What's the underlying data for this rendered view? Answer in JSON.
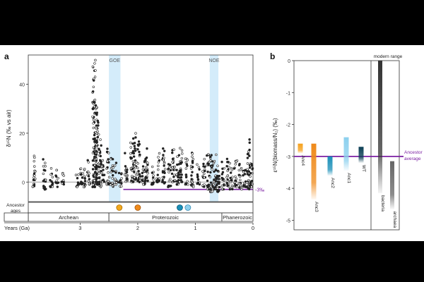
{
  "figure": {
    "panel_a_label": "a",
    "panel_b_label": "b"
  },
  "chart_data": [
    {
      "id": "panel-a",
      "type": "scatter",
      "title": "",
      "ylabel": "δ¹⁵N (‰ vs air)",
      "xlabel": "Years (Ga)",
      "xlim": [
        3.9,
        0
      ],
      "ylim": [
        -8,
        52
      ],
      "y_ticks": [
        0,
        20,
        40
      ],
      "x_ticks": [
        3,
        2,
        1,
        0
      ],
      "reference_lines": [
        {
          "y": 0,
          "color": "#9e9e9e"
        },
        {
          "y": -3,
          "x_from": 2.25,
          "x_to": 0,
          "color": "#7b1fa2",
          "label": "-3‰"
        }
      ],
      "bands": [
        {
          "label": "GOE",
          "x_from": 2.5,
          "x_to": 2.3,
          "color": "#d4ecfa"
        },
        {
          "label": "NOE",
          "x_from": 0.75,
          "x_to": 0.6,
          "color": "#d4ecfa"
        }
      ],
      "point_color": "#222222",
      "clusters": [
        {
          "x": 3.8,
          "ymin": -2,
          "ymax": 11
        },
        {
          "x": 3.62,
          "ymin": -3,
          "ymax": 10
        },
        {
          "x": 3.5,
          "ymin": -2,
          "ymax": 7
        },
        {
          "x": 3.4,
          "ymin": -2,
          "ymax": 5
        },
        {
          "x": 3.3,
          "ymin": -1,
          "ymax": 4
        },
        {
          "x": 3.05,
          "ymin": -2,
          "ymax": 4
        },
        {
          "x": 2.98,
          "ymin": -1,
          "ymax": 6
        },
        {
          "x": 2.93,
          "ymin": -2,
          "ymax": 7
        },
        {
          "x": 2.85,
          "ymin": -1,
          "ymax": 9
        },
        {
          "x": 2.76,
          "ymin": -2,
          "ymax": 50
        },
        {
          "x": 2.73,
          "ymin": 0,
          "ymax": 32
        },
        {
          "x": 2.7,
          "ymin": -1,
          "ymax": 26
        },
        {
          "x": 2.65,
          "ymin": -2,
          "ymax": 18
        },
        {
          "x": 2.6,
          "ymin": 0,
          "ymax": 10
        },
        {
          "x": 2.52,
          "ymin": -1,
          "ymax": 14
        },
        {
          "x": 2.45,
          "ymin": -2,
          "ymax": 10
        },
        {
          "x": 2.38,
          "ymin": -1,
          "ymax": 9
        },
        {
          "x": 2.3,
          "ymin": -2,
          "ymax": 6
        },
        {
          "x": 2.2,
          "ymin": 0,
          "ymax": 12
        },
        {
          "x": 2.1,
          "ymin": 0,
          "ymax": 18
        },
        {
          "x": 2.05,
          "ymin": 1,
          "ymax": 20
        },
        {
          "x": 1.98,
          "ymin": 0,
          "ymax": 17
        },
        {
          "x": 1.9,
          "ymin": -1,
          "ymax": 10
        },
        {
          "x": 1.85,
          "ymin": 0,
          "ymax": 14
        },
        {
          "x": 1.75,
          "ymin": -1,
          "ymax": 7
        },
        {
          "x": 1.65,
          "ymin": 0,
          "ymax": 12
        },
        {
          "x": 1.55,
          "ymin": -1,
          "ymax": 14
        },
        {
          "x": 1.45,
          "ymin": -2,
          "ymax": 8
        },
        {
          "x": 1.38,
          "ymin": 0,
          "ymax": 14
        },
        {
          "x": 1.3,
          "ymin": -1,
          "ymax": 11
        },
        {
          "x": 1.25,
          "ymin": 0,
          "ymax": 15
        },
        {
          "x": 1.15,
          "ymin": -1,
          "ymax": 10
        },
        {
          "x": 1.05,
          "ymin": -2,
          "ymax": 13
        },
        {
          "x": 0.95,
          "ymin": -1,
          "ymax": 8
        },
        {
          "x": 0.85,
          "ymin": -2,
          "ymax": 10
        },
        {
          "x": 0.78,
          "ymin": -3,
          "ymax": 12
        },
        {
          "x": 0.72,
          "ymin": -4,
          "ymax": 14
        },
        {
          "x": 0.66,
          "ymin": -3,
          "ymax": 12
        },
        {
          "x": 0.6,
          "ymin": -4,
          "ymax": 10
        },
        {
          "x": 0.52,
          "ymin": -3,
          "ymax": 9
        },
        {
          "x": 0.44,
          "ymin": -2,
          "ymax": 10
        },
        {
          "x": 0.38,
          "ymin": -3,
          "ymax": 8
        },
        {
          "x": 0.3,
          "ymin": -2,
          "ymax": 9
        },
        {
          "x": 0.22,
          "ymin": -3,
          "ymax": 8
        },
        {
          "x": 0.15,
          "ymin": -2,
          "ymax": 9
        },
        {
          "x": 0.08,
          "ymin": -3,
          "ymax": 18
        },
        {
          "x": 0.03,
          "ymin": -2,
          "ymax": 10
        }
      ],
      "ancestor_ages": {
        "label": "Ancestor ages",
        "line_from": 2.95,
        "line_to": 0.85,
        "markers": [
          {
            "x": 2.32,
            "color": "#f2a81d",
            "stroke": "#b06f00"
          },
          {
            "x": 2.0,
            "color": "#ef8a1a",
            "stroke": "#a8560a"
          },
          {
            "x": 1.27,
            "color": "#1a8fb8",
            "stroke": "#0a5a78"
          },
          {
            "x": 1.13,
            "color": "#8cd0ee",
            "stroke": "#3a8eb5"
          }
        ]
      },
      "eons": [
        {
          "label": "Archean",
          "x_from": 3.9,
          "x_to": 2.5
        },
        {
          "label": "Proterozoic",
          "x_from": 2.5,
          "x_to": 0.54
        },
        {
          "label": "Phanerozoic",
          "x_from": 0.54,
          "x_to": 0
        }
      ]
    },
    {
      "id": "panel-b",
      "type": "bar",
      "title": "",
      "ylabel": "ε¹⁵N(biomass/N₂) (‰)",
      "ylim": [
        -5.3,
        0
      ],
      "y_ticks": [
        0,
        -1,
        -2,
        -3,
        -4,
        -5
      ],
      "reference_line": {
        "y": -3,
        "color": "#7b1fa2",
        "label": "Ancestor average"
      },
      "group_label": "modern range",
      "bars": [
        {
          "label": "Anc4",
          "top": -2.6,
          "bottom": -2.9,
          "color": "#f6a11b"
        },
        {
          "label": "Anc3",
          "top": -2.6,
          "bottom": -4.35,
          "color": "#ef8a1a"
        },
        {
          "label": "Anc2",
          "top": -3.0,
          "bottom": -3.6,
          "color": "#1a8fb8"
        },
        {
          "label": "Anc1",
          "top": -2.4,
          "bottom": -3.45,
          "color": "#8cd0ee"
        },
        {
          "label": "WT",
          "top": -2.7,
          "bottom": -3.2,
          "color": "#0b3f55"
        },
        {
          "label": "bacteria",
          "top": 0,
          "bottom": -4.15,
          "color": "#333333"
        },
        {
          "label": "archaea",
          "top": -3.15,
          "bottom": -4.65,
          "color": "#666666"
        }
      ]
    }
  ]
}
